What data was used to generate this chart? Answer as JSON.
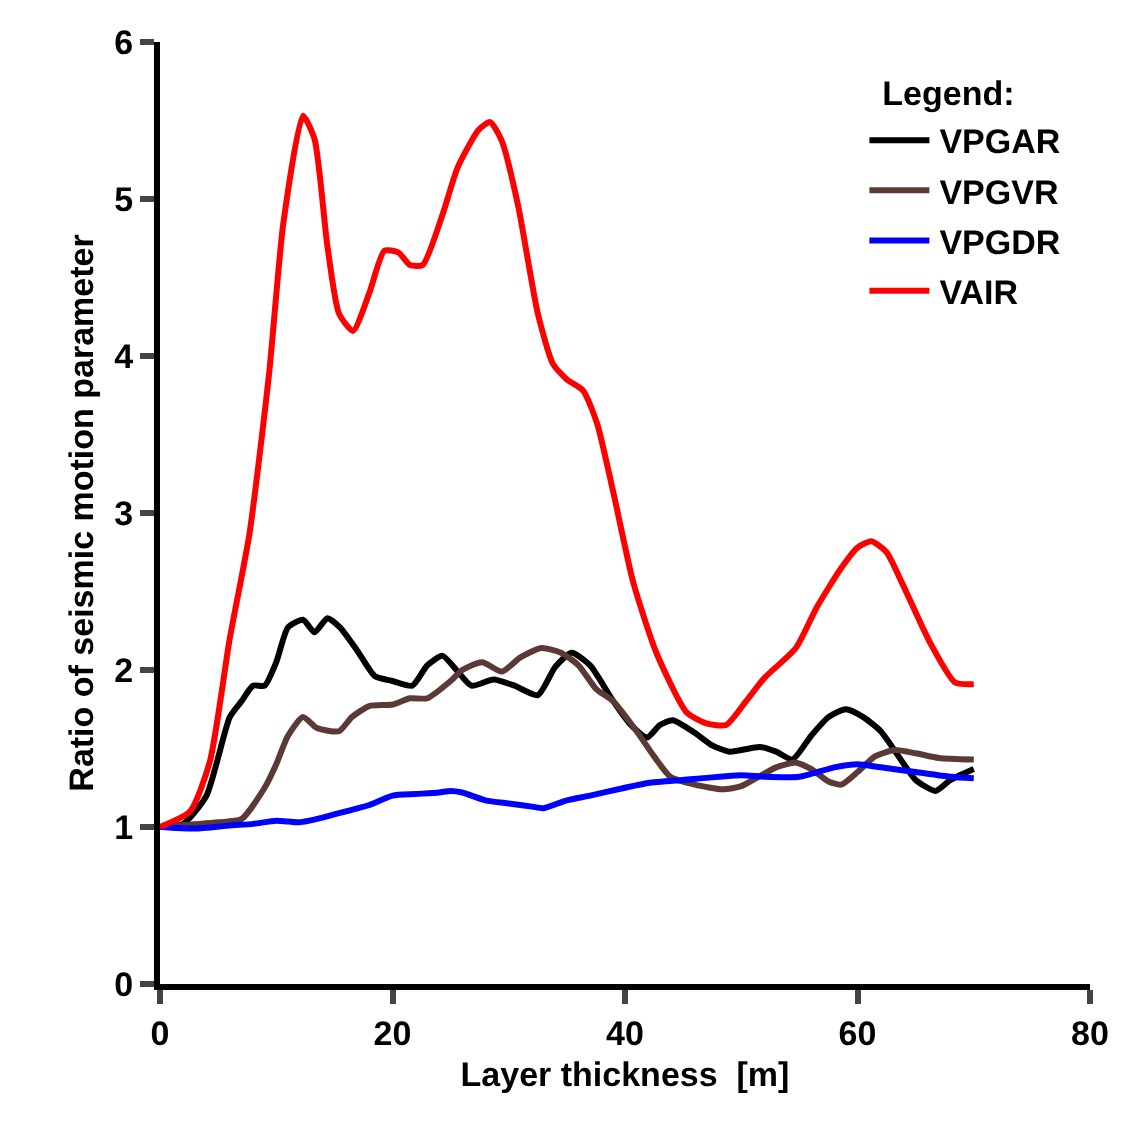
{
  "chart_data": {
    "type": "line",
    "xlabel": "Layer thickness  [m]",
    "ylabel": "Ratio of seismic motion parameter",
    "legend_title": "Legend:",
    "legend": "top right",
    "grid": false,
    "marker": "none",
    "line_style": "solid",
    "xlim": [
      0,
      80
    ],
    "xticks": [
      0,
      20,
      40,
      60,
      80
    ],
    "ylim": [
      0,
      6
    ],
    "yticks": [
      0,
      1,
      2,
      3,
      4,
      5,
      6
    ],
    "series": [
      {
        "name": "VPGAR",
        "color": "#000000",
        "x": [
          0,
          2,
          4,
          6,
          7,
          8,
          9,
          10,
          11,
          12.3,
          13.3,
          14.4,
          15.5,
          17,
          18.5,
          20,
          21.7,
          23,
          24.3,
          25.5,
          26.8,
          28.7,
          30.5,
          32.5,
          34,
          35.4,
          37,
          39,
          40.5,
          41.9,
          43,
          44.1,
          46,
          47.5,
          49,
          51.6,
          53,
          54.4,
          56,
          57.5,
          59,
          60.5,
          62,
          64,
          65,
          66.7,
          68,
          70
        ],
        "values": [
          1.0,
          1.02,
          1.2,
          1.7,
          1.8,
          1.9,
          1.9,
          2.05,
          2.27,
          2.32,
          2.24,
          2.33,
          2.27,
          2.12,
          1.96,
          1.93,
          1.9,
          2.03,
          2.09,
          2.0,
          1.9,
          1.94,
          1.9,
          1.84,
          2.02,
          2.11,
          2.03,
          1.8,
          1.65,
          1.57,
          1.65,
          1.68,
          1.6,
          1.52,
          1.48,
          1.51,
          1.48,
          1.43,
          1.58,
          1.7,
          1.75,
          1.7,
          1.61,
          1.4,
          1.3,
          1.23,
          1.3,
          1.37
        ]
      },
      {
        "name": "VPGVR",
        "color": "#5b3a36",
        "x": [
          0,
          5,
          7,
          9,
          10,
          11,
          12.3,
          13.5,
          15.4,
          16.5,
          18,
          20,
          21.5,
          23,
          25,
          26,
          27.7,
          29.4,
          31,
          32.8,
          34.5,
          36,
          37.5,
          39,
          41,
          42.5,
          43.9,
          46,
          48.4,
          50,
          51.5,
          53,
          54.7,
          56,
          57.5,
          58.6,
          60,
          61.5,
          63.2,
          65,
          67,
          70
        ],
        "values": [
          1.0,
          1.03,
          1.05,
          1.25,
          1.4,
          1.58,
          1.7,
          1.63,
          1.61,
          1.7,
          1.77,
          1.78,
          1.82,
          1.82,
          1.93,
          2.0,
          2.05,
          1.99,
          2.08,
          2.14,
          2.11,
          2.03,
          1.88,
          1.8,
          1.61,
          1.45,
          1.32,
          1.27,
          1.24,
          1.26,
          1.32,
          1.38,
          1.41,
          1.37,
          1.29,
          1.27,
          1.35,
          1.45,
          1.49,
          1.47,
          1.44,
          1.43
        ]
      },
      {
        "name": "VPGDR",
        "color": "#0000ff",
        "x": [
          0,
          3,
          6,
          8,
          10,
          12,
          14,
          16,
          18,
          20,
          22,
          24,
          25,
          26,
          28,
          30,
          32,
          33,
          35,
          37,
          40,
          42,
          45,
          50,
          52,
          55,
          58,
          60,
          62,
          65,
          68,
          70
        ],
        "values": [
          1.0,
          0.99,
          1.01,
          1.02,
          1.04,
          1.03,
          1.06,
          1.1,
          1.14,
          1.2,
          1.21,
          1.22,
          1.23,
          1.22,
          1.17,
          1.15,
          1.13,
          1.12,
          1.17,
          1.2,
          1.25,
          1.28,
          1.3,
          1.33,
          1.32,
          1.32,
          1.38,
          1.4,
          1.38,
          1.35,
          1.32,
          1.31
        ]
      },
      {
        "name": "VAIR",
        "color": "#ff0000",
        "x": [
          0,
          2.6,
          4.3,
          6,
          7.7,
          9.4,
          10.6,
          12.3,
          13.3,
          14.4,
          15.4,
          16.6,
          18,
          19.3,
          20.5,
          21.5,
          22.6,
          24.3,
          25.6,
          27.4,
          28.4,
          29.4,
          30.8,
          32.5,
          33.8,
          35,
          36.4,
          37.6,
          39,
          40.7,
          42.7,
          45.3,
          47,
          48.7,
          50.4,
          52,
          54.7,
          56.5,
          58.6,
          60,
          61.2,
          62.5,
          63.8,
          66.2,
          68.4,
          70
        ],
        "values": [
          1.0,
          1.1,
          1.42,
          2.2,
          2.87,
          3.9,
          4.84,
          5.53,
          5.38,
          4.7,
          4.27,
          4.16,
          4.4,
          4.67,
          4.66,
          4.58,
          4.58,
          4.9,
          5.2,
          5.44,
          5.49,
          5.37,
          4.96,
          4.27,
          3.95,
          3.85,
          3.78,
          3.57,
          3.13,
          2.56,
          2.11,
          1.73,
          1.66,
          1.65,
          1.8,
          1.95,
          2.14,
          2.4,
          2.65,
          2.78,
          2.82,
          2.75,
          2.56,
          2.18,
          1.92,
          1.91
        ]
      }
    ]
  }
}
